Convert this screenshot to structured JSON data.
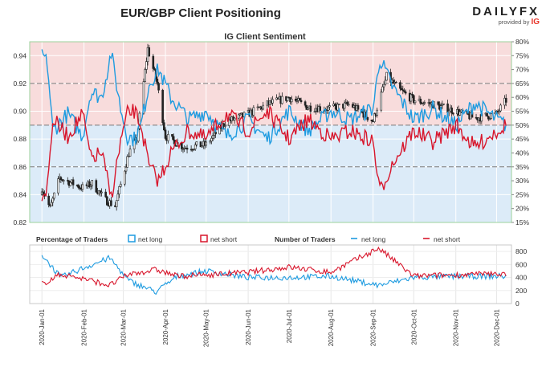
{
  "header": {
    "title": "EUR/GBP Client Positioning",
    "brand": "DAILYFX",
    "brand_sub": "provided by",
    "brand_ig": "IG"
  },
  "colors": {
    "net_long": "#1e9be0",
    "net_short": "#d8162c",
    "bull": "#ffffff",
    "bear": "#222222"
  },
  "chart_data": [
    {
      "type": "candlestick+line",
      "title": "IG Client Sentiment",
      "price_ylim": [
        0.82,
        0.95
      ],
      "price_ticks": [
        "0.82",
        "0.84",
        "0.86",
        "0.88",
        "0.90",
        "0.92",
        "0.94"
      ],
      "pct_ylim": [
        15,
        80
      ],
      "pct_ticks": [
        "15%",
        "20%",
        "25%",
        "30%",
        "35%",
        "40%",
        "45%",
        "50%",
        "55%",
        "60%",
        "65%",
        "70%",
        "75%",
        "80%"
      ],
      "reference_lines": [
        35,
        50,
        65
      ],
      "price_key": [
        {
          "date": "2020-01-01",
          "price": 0.845
        },
        {
          "date": "2020-01-07",
          "price": 0.83
        },
        {
          "date": "2020-01-14",
          "price": 0.852
        },
        {
          "date": "2020-01-31",
          "price": 0.845
        },
        {
          "date": "2020-02-07",
          "price": 0.848
        },
        {
          "date": "2020-02-17",
          "price": 0.836
        },
        {
          "date": "2020-02-24",
          "price": 0.832
        },
        {
          "date": "2020-03-05",
          "price": 0.87
        },
        {
          "date": "2020-03-11",
          "price": 0.88
        },
        {
          "date": "2020-03-19",
          "price": 0.945
        },
        {
          "date": "2020-03-26",
          "price": 0.92
        },
        {
          "date": "2020-04-01",
          "price": 0.882
        },
        {
          "date": "2020-04-15",
          "price": 0.874
        },
        {
          "date": "2020-05-01",
          "price": 0.876
        },
        {
          "date": "2020-05-15",
          "price": 0.892
        },
        {
          "date": "2020-06-01",
          "price": 0.898
        },
        {
          "date": "2020-06-15",
          "price": 0.905
        },
        {
          "date": "2020-07-01",
          "price": 0.91
        },
        {
          "date": "2020-07-15",
          "price": 0.903
        },
        {
          "date": "2020-08-01",
          "price": 0.902
        },
        {
          "date": "2020-08-15",
          "price": 0.905
        },
        {
          "date": "2020-09-01",
          "price": 0.893
        },
        {
          "date": "2020-09-11",
          "price": 0.925
        },
        {
          "date": "2020-09-21",
          "price": 0.915
        },
        {
          "date": "2020-10-01",
          "price": 0.908
        },
        {
          "date": "2020-10-15",
          "price": 0.905
        },
        {
          "date": "2020-11-01",
          "price": 0.9
        },
        {
          "date": "2020-11-15",
          "price": 0.895
        },
        {
          "date": "2020-12-01",
          "price": 0.898
        },
        {
          "date": "2020-12-08",
          "price": 0.908
        }
      ],
      "net_long_pct_key": [
        {
          "date": "2020-01-01",
          "pct": 76
        },
        {
          "date": "2020-01-05",
          "pct": 72
        },
        {
          "date": "2020-01-09",
          "pct": 48
        },
        {
          "date": "2020-01-20",
          "pct": 54
        },
        {
          "date": "2020-01-31",
          "pct": 46
        },
        {
          "date": "2020-02-06",
          "pct": 62
        },
        {
          "date": "2020-02-14",
          "pct": 60
        },
        {
          "date": "2020-02-21",
          "pct": 76
        },
        {
          "date": "2020-02-28",
          "pct": 56
        },
        {
          "date": "2020-03-04",
          "pct": 46
        },
        {
          "date": "2020-03-09",
          "pct": 45
        },
        {
          "date": "2020-03-14",
          "pct": 50
        },
        {
          "date": "2020-03-20",
          "pct": 65
        },
        {
          "date": "2020-03-27",
          "pct": 70
        },
        {
          "date": "2020-04-05",
          "pct": 60
        },
        {
          "date": "2020-04-18",
          "pct": 52
        },
        {
          "date": "2020-05-01",
          "pct": 55
        },
        {
          "date": "2020-05-16",
          "pct": 46
        },
        {
          "date": "2020-06-01",
          "pct": 52
        },
        {
          "date": "2020-06-15",
          "pct": 45
        },
        {
          "date": "2020-07-01",
          "pct": 55
        },
        {
          "date": "2020-07-15",
          "pct": 48
        },
        {
          "date": "2020-08-01",
          "pct": 55
        },
        {
          "date": "2020-08-15",
          "pct": 52
        },
        {
          "date": "2020-09-01",
          "pct": 56
        },
        {
          "date": "2020-09-06",
          "pct": 74
        },
        {
          "date": "2020-09-15",
          "pct": 64
        },
        {
          "date": "2020-10-01",
          "pct": 52
        },
        {
          "date": "2020-10-15",
          "pct": 56
        },
        {
          "date": "2020-11-01",
          "pct": 50
        },
        {
          "date": "2020-11-15",
          "pct": 58
        },
        {
          "date": "2020-12-01",
          "pct": 52
        },
        {
          "date": "2020-12-08",
          "pct": 50
        }
      ],
      "net_long_legend": "net long",
      "net_short_legend": "net short"
    },
    {
      "type": "line",
      "left_legend_title": "Percentage of Traders",
      "right_legend_title": "Number of Traders",
      "ylim": [
        0,
        900
      ],
      "y_ticks": [
        "0",
        "200",
        "400",
        "600",
        "800"
      ],
      "net_long_count_key": [
        {
          "date": "2020-01-01",
          "value": 750
        },
        {
          "date": "2020-01-15",
          "value": 400
        },
        {
          "date": "2020-02-01",
          "value": 550
        },
        {
          "date": "2020-02-20",
          "value": 700
        },
        {
          "date": "2020-03-05",
          "value": 350
        },
        {
          "date": "2020-03-25",
          "value": 180
        },
        {
          "date": "2020-04-10",
          "value": 420
        },
        {
          "date": "2020-05-01",
          "value": 500
        },
        {
          "date": "2020-06-01",
          "value": 400
        },
        {
          "date": "2020-07-01",
          "value": 400
        },
        {
          "date": "2020-08-01",
          "value": 420
        },
        {
          "date": "2020-09-05",
          "value": 280
        },
        {
          "date": "2020-10-01",
          "value": 400
        },
        {
          "date": "2020-11-01",
          "value": 420
        },
        {
          "date": "2020-12-08",
          "value": 420
        }
      ],
      "net_short_count_key": [
        {
          "date": "2020-01-01",
          "value": 300
        },
        {
          "date": "2020-01-15",
          "value": 450
        },
        {
          "date": "2020-02-01",
          "value": 380
        },
        {
          "date": "2020-02-20",
          "value": 280
        },
        {
          "date": "2020-03-05",
          "value": 450
        },
        {
          "date": "2020-03-25",
          "value": 520
        },
        {
          "date": "2020-04-10",
          "value": 420
        },
        {
          "date": "2020-05-01",
          "value": 440
        },
        {
          "date": "2020-06-01",
          "value": 480
        },
        {
          "date": "2020-07-01",
          "value": 560
        },
        {
          "date": "2020-08-01",
          "value": 480
        },
        {
          "date": "2020-09-05",
          "value": 850
        },
        {
          "date": "2020-10-01",
          "value": 420
        },
        {
          "date": "2020-11-01",
          "value": 440
        },
        {
          "date": "2020-12-08",
          "value": 460
        }
      ],
      "net_long_legend": "net long",
      "net_short_legend": "net short"
    }
  ],
  "x_axis": {
    "ticks": [
      {
        "date": "2020-01-01",
        "label": "2020-Jan-01"
      },
      {
        "date": "2020-02-01",
        "label": "2020-Feb-01"
      },
      {
        "date": "2020-03-01",
        "label": "2020-Mar-01"
      },
      {
        "date": "2020-04-01",
        "label": "2020-Apr-01"
      },
      {
        "date": "2020-05-01",
        "label": "2020-May-01"
      },
      {
        "date": "2020-06-01",
        "label": "2020-Jun-01"
      },
      {
        "date": "2020-07-01",
        "label": "2020-Jul-01"
      },
      {
        "date": "2020-08-01",
        "label": "2020-Aug-01"
      },
      {
        "date": "2020-09-01",
        "label": "2020-Sep-01"
      },
      {
        "date": "2020-10-01",
        "label": "2020-Oct-01"
      },
      {
        "date": "2020-11-01",
        "label": "2020-Nov-01"
      },
      {
        "date": "2020-12-01",
        "label": "2020-Dec-01"
      }
    ],
    "range": [
      "2019-12-23",
      "2020-12-12"
    ]
  }
}
